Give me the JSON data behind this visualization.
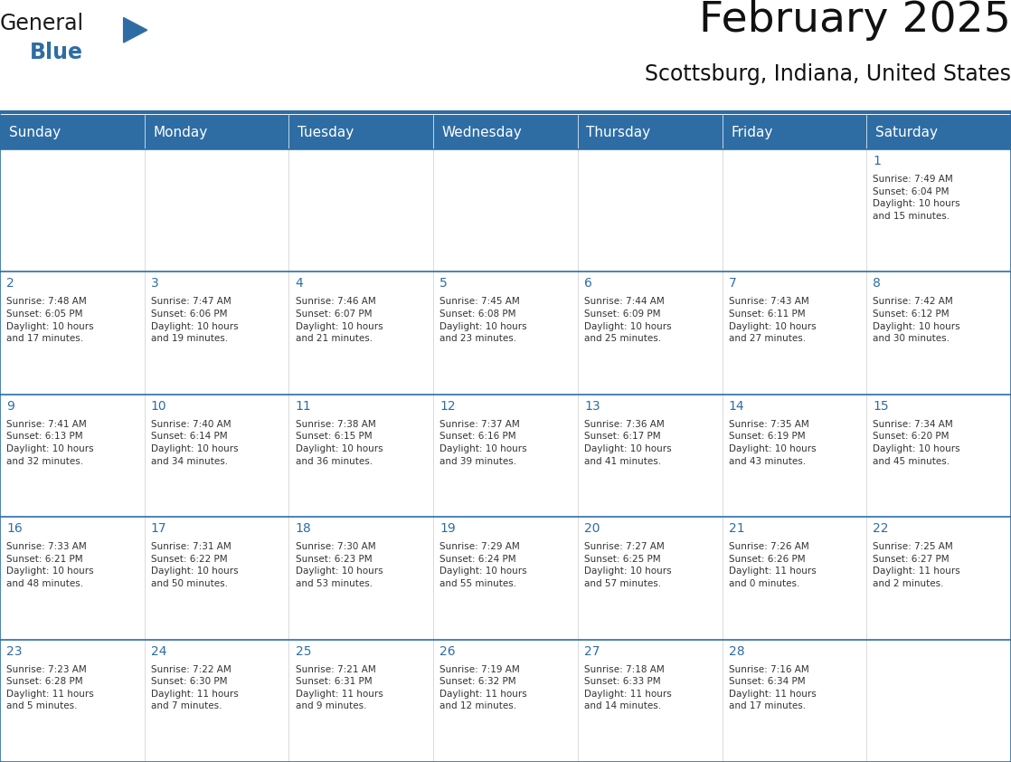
{
  "title": "February 2025",
  "subtitle": "Scottsburg, Indiana, United States",
  "header_bg": "#2E6DA4",
  "header_text_color": "#FFFFFF",
  "cell_bg": "#FFFFFF",
  "grid_line_color": "#2E6DA4",
  "day_number_color": "#2E6DA4",
  "text_color": "#333333",
  "days_of_week": [
    "Sunday",
    "Monday",
    "Tuesday",
    "Wednesday",
    "Thursday",
    "Friday",
    "Saturday"
  ],
  "weeks": [
    [
      {
        "day": "",
        "info": ""
      },
      {
        "day": "",
        "info": ""
      },
      {
        "day": "",
        "info": ""
      },
      {
        "day": "",
        "info": ""
      },
      {
        "day": "",
        "info": ""
      },
      {
        "day": "",
        "info": ""
      },
      {
        "day": "1",
        "info": "Sunrise: 7:49 AM\nSunset: 6:04 PM\nDaylight: 10 hours\nand 15 minutes."
      }
    ],
    [
      {
        "day": "2",
        "info": "Sunrise: 7:48 AM\nSunset: 6:05 PM\nDaylight: 10 hours\nand 17 minutes."
      },
      {
        "day": "3",
        "info": "Sunrise: 7:47 AM\nSunset: 6:06 PM\nDaylight: 10 hours\nand 19 minutes."
      },
      {
        "day": "4",
        "info": "Sunrise: 7:46 AM\nSunset: 6:07 PM\nDaylight: 10 hours\nand 21 minutes."
      },
      {
        "day": "5",
        "info": "Sunrise: 7:45 AM\nSunset: 6:08 PM\nDaylight: 10 hours\nand 23 minutes."
      },
      {
        "day": "6",
        "info": "Sunrise: 7:44 AM\nSunset: 6:09 PM\nDaylight: 10 hours\nand 25 minutes."
      },
      {
        "day": "7",
        "info": "Sunrise: 7:43 AM\nSunset: 6:11 PM\nDaylight: 10 hours\nand 27 minutes."
      },
      {
        "day": "8",
        "info": "Sunrise: 7:42 AM\nSunset: 6:12 PM\nDaylight: 10 hours\nand 30 minutes."
      }
    ],
    [
      {
        "day": "9",
        "info": "Sunrise: 7:41 AM\nSunset: 6:13 PM\nDaylight: 10 hours\nand 32 minutes."
      },
      {
        "day": "10",
        "info": "Sunrise: 7:40 AM\nSunset: 6:14 PM\nDaylight: 10 hours\nand 34 minutes."
      },
      {
        "day": "11",
        "info": "Sunrise: 7:38 AM\nSunset: 6:15 PM\nDaylight: 10 hours\nand 36 minutes."
      },
      {
        "day": "12",
        "info": "Sunrise: 7:37 AM\nSunset: 6:16 PM\nDaylight: 10 hours\nand 39 minutes."
      },
      {
        "day": "13",
        "info": "Sunrise: 7:36 AM\nSunset: 6:17 PM\nDaylight: 10 hours\nand 41 minutes."
      },
      {
        "day": "14",
        "info": "Sunrise: 7:35 AM\nSunset: 6:19 PM\nDaylight: 10 hours\nand 43 minutes."
      },
      {
        "day": "15",
        "info": "Sunrise: 7:34 AM\nSunset: 6:20 PM\nDaylight: 10 hours\nand 45 minutes."
      }
    ],
    [
      {
        "day": "16",
        "info": "Sunrise: 7:33 AM\nSunset: 6:21 PM\nDaylight: 10 hours\nand 48 minutes."
      },
      {
        "day": "17",
        "info": "Sunrise: 7:31 AM\nSunset: 6:22 PM\nDaylight: 10 hours\nand 50 minutes."
      },
      {
        "day": "18",
        "info": "Sunrise: 7:30 AM\nSunset: 6:23 PM\nDaylight: 10 hours\nand 53 minutes."
      },
      {
        "day": "19",
        "info": "Sunrise: 7:29 AM\nSunset: 6:24 PM\nDaylight: 10 hours\nand 55 minutes."
      },
      {
        "day": "20",
        "info": "Sunrise: 7:27 AM\nSunset: 6:25 PM\nDaylight: 10 hours\nand 57 minutes."
      },
      {
        "day": "21",
        "info": "Sunrise: 7:26 AM\nSunset: 6:26 PM\nDaylight: 11 hours\nand 0 minutes."
      },
      {
        "day": "22",
        "info": "Sunrise: 7:25 AM\nSunset: 6:27 PM\nDaylight: 11 hours\nand 2 minutes."
      }
    ],
    [
      {
        "day": "23",
        "info": "Sunrise: 7:23 AM\nSunset: 6:28 PM\nDaylight: 11 hours\nand 5 minutes."
      },
      {
        "day": "24",
        "info": "Sunrise: 7:22 AM\nSunset: 6:30 PM\nDaylight: 11 hours\nand 7 minutes."
      },
      {
        "day": "25",
        "info": "Sunrise: 7:21 AM\nSunset: 6:31 PM\nDaylight: 11 hours\nand 9 minutes."
      },
      {
        "day": "26",
        "info": "Sunrise: 7:19 AM\nSunset: 6:32 PM\nDaylight: 11 hours\nand 12 minutes."
      },
      {
        "day": "27",
        "info": "Sunrise: 7:18 AM\nSunset: 6:33 PM\nDaylight: 11 hours\nand 14 minutes."
      },
      {
        "day": "28",
        "info": "Sunrise: 7:16 AM\nSunset: 6:34 PM\nDaylight: 11 hours\nand 17 minutes."
      },
      {
        "day": "",
        "info": ""
      }
    ]
  ],
  "logo_general_color": "#1a1a1a",
  "logo_blue_color": "#2E6DA4",
  "title_fontsize": 34,
  "subtitle_fontsize": 17,
  "header_fontsize": 11,
  "day_num_fontsize": 10,
  "cell_text_fontsize": 7.5
}
